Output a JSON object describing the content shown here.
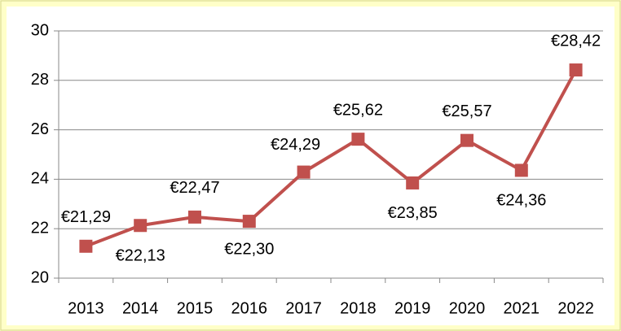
{
  "chart_data": {
    "type": "line",
    "categories": [
      "2013",
      "2014",
      "2015",
      "2016",
      "2017",
      "2018",
      "2019",
      "2020",
      "2021",
      "2022"
    ],
    "series": [
      {
        "color": "#c0504d",
        "values": [
          21.29,
          22.13,
          22.47,
          22.3,
          24.29,
          25.62,
          23.85,
          25.57,
          24.36,
          28.42
        ],
        "value_labels": [
          "€21,29",
          "€22,13",
          "€22,47",
          "€22,30",
          "€24,29",
          "€25,62",
          "€23,85",
          "€25,57",
          "€24,36",
          "€28,42"
        ]
      }
    ],
    "ylim": [
      20,
      30
    ],
    "yticks": [
      20,
      22,
      24,
      26,
      28,
      30
    ],
    "grid": true
  }
}
